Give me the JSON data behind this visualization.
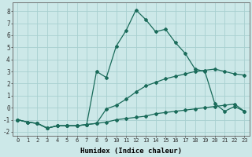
{
  "xlabel": "Humidex (Indice chaleur)",
  "bg_color": "#cce8e8",
  "grid_color": "#a8d0d0",
  "line_color": "#1a6b5a",
  "xlim": [
    -0.5,
    23.5
  ],
  "ylim": [
    -2.3,
    8.7
  ],
  "yticks": [
    -2,
    -1,
    0,
    1,
    2,
    3,
    4,
    5,
    6,
    7,
    8
  ],
  "xticks": [
    0,
    1,
    2,
    3,
    4,
    5,
    6,
    7,
    8,
    9,
    10,
    11,
    12,
    13,
    14,
    15,
    16,
    17,
    18,
    19,
    20,
    21,
    22,
    23
  ],
  "line1_x": [
    0,
    1,
    2,
    3,
    4,
    5,
    6,
    7,
    8,
    9,
    10,
    11,
    12,
    13,
    14,
    15,
    16,
    17,
    18,
    19,
    20,
    21,
    22,
    23
  ],
  "line1_y": [
    -1.0,
    -1.2,
    -1.3,
    -1.7,
    -1.5,
    -1.5,
    -1.5,
    -1.4,
    -1.3,
    -0.1,
    0.2,
    0.7,
    1.3,
    1.8,
    2.1,
    2.4,
    2.6,
    2.8,
    3.0,
    3.1,
    3.2,
    3.0,
    2.8,
    2.7
  ],
  "line2_x": [
    0,
    1,
    2,
    3,
    4,
    5,
    6,
    7,
    8,
    9,
    10,
    11,
    12,
    13,
    14,
    15,
    16,
    17,
    18,
    19,
    20,
    21,
    22,
    23
  ],
  "line2_y": [
    -1.0,
    -1.2,
    -1.3,
    -1.7,
    -1.5,
    -1.5,
    -1.5,
    -1.4,
    3.0,
    2.5,
    5.1,
    6.4,
    8.1,
    7.3,
    6.3,
    6.5,
    5.4,
    4.5,
    3.2,
    3.0,
    0.35,
    -0.3,
    0.1,
    -0.3
  ],
  "line3_x": [
    0,
    1,
    2,
    3,
    4,
    5,
    6,
    7,
    8,
    9,
    10,
    11,
    12,
    13,
    14,
    15,
    16,
    17,
    18,
    19,
    20,
    21,
    22,
    23
  ],
  "line3_y": [
    -1.0,
    -1.2,
    -1.3,
    -1.7,
    -1.5,
    -1.5,
    -1.5,
    -1.4,
    -1.3,
    -1.2,
    -1.0,
    -0.9,
    -0.8,
    -0.7,
    -0.5,
    -0.4,
    -0.3,
    -0.2,
    -0.1,
    0.0,
    0.1,
    0.2,
    0.3,
    -0.3
  ]
}
